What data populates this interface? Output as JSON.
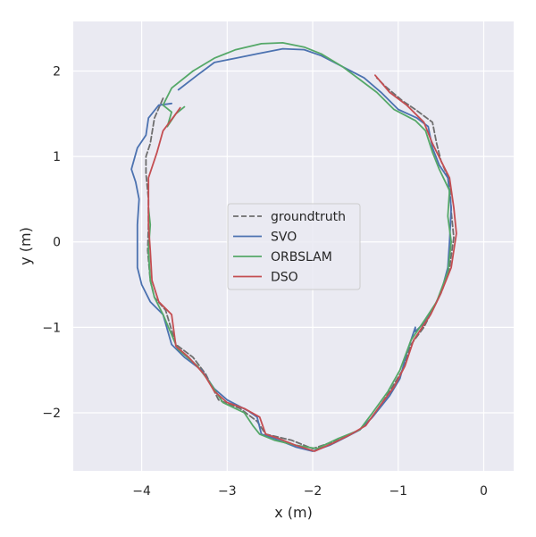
{
  "chart_data": {
    "type": "line",
    "xlabel": "x (m)",
    "ylabel": "y (m)",
    "xlim": [
      -4.8,
      0.35
    ],
    "ylim": [
      -2.68,
      2.58
    ],
    "xticks": [
      -4,
      -3,
      -2,
      -1,
      0
    ],
    "yticks": [
      -2,
      -1,
      0,
      1,
      2
    ],
    "xtick_labels": [
      "−4",
      "−3",
      "−2",
      "−1",
      "0"
    ],
    "ytick_labels": [
      "−2",
      "−1",
      "0",
      "1",
      "2"
    ],
    "grid": true,
    "background": "#eaeaf2",
    "legend_position": "center",
    "series": [
      {
        "name": "groundtruth",
        "color": "#6e6e6e",
        "dash": true,
        "points": [
          [
            -3.75,
            1.68
          ],
          [
            -3.85,
            1.45
          ],
          [
            -3.9,
            1.15
          ],
          [
            -3.95,
            1.0
          ],
          [
            -3.95,
            0.8
          ],
          [
            -3.92,
            0.5
          ],
          [
            -3.92,
            0.2
          ],
          [
            -3.93,
            -0.1
          ],
          [
            -3.9,
            -0.45
          ],
          [
            -3.85,
            -0.65
          ],
          [
            -3.72,
            -0.8
          ],
          [
            -3.6,
            -1.2
          ],
          [
            -3.4,
            -1.35
          ],
          [
            -3.25,
            -1.55
          ],
          [
            -3.1,
            -1.85
          ],
          [
            -2.85,
            -1.95
          ],
          [
            -2.65,
            -2.1
          ],
          [
            -2.55,
            -2.25
          ],
          [
            -2.25,
            -2.32
          ],
          [
            -2.0,
            -2.42
          ],
          [
            -1.7,
            -2.32
          ],
          [
            -1.45,
            -2.2
          ],
          [
            -1.3,
            -2.05
          ],
          [
            -1.1,
            -1.75
          ],
          [
            -0.95,
            -1.5
          ],
          [
            -0.85,
            -1.2
          ],
          [
            -0.7,
            -1.0
          ],
          [
            -0.6,
            -0.8
          ],
          [
            -0.48,
            -0.55
          ],
          [
            -0.4,
            -0.3
          ],
          [
            -0.35,
            0.05
          ],
          [
            -0.38,
            0.35
          ],
          [
            -0.4,
            0.72
          ],
          [
            -0.5,
            0.95
          ],
          [
            -0.55,
            1.15
          ],
          [
            -0.6,
            1.4
          ],
          [
            -0.8,
            1.55
          ],
          [
            -0.95,
            1.65
          ],
          [
            -1.15,
            1.82
          ],
          [
            -1.25,
            1.92
          ]
        ]
      },
      {
        "name": "SVO",
        "color": "#4c72b0",
        "dash": false,
        "points": [
          [
            -3.57,
            1.78
          ],
          [
            -3.35,
            1.95
          ],
          [
            -3.15,
            2.1
          ],
          [
            -2.9,
            2.15
          ],
          [
            -2.65,
            2.2
          ],
          [
            -2.35,
            2.26
          ],
          [
            -2.1,
            2.25
          ],
          [
            -1.9,
            2.18
          ],
          [
            -1.65,
            2.05
          ],
          [
            -1.4,
            1.92
          ],
          [
            -1.2,
            1.75
          ],
          [
            -1.0,
            1.55
          ],
          [
            -0.78,
            1.45
          ],
          [
            -0.65,
            1.35
          ],
          [
            -0.6,
            1.1
          ],
          [
            -0.52,
            0.9
          ],
          [
            -0.42,
            0.75
          ],
          [
            -0.38,
            0.4
          ],
          [
            -0.4,
            0.0
          ],
          [
            -0.42,
            -0.3
          ],
          [
            -0.5,
            -0.6
          ],
          [
            -0.6,
            -0.8
          ],
          [
            -0.7,
            -0.95
          ],
          [
            -0.8,
            -1.05
          ],
          [
            -0.8,
            -1.0
          ],
          [
            -0.9,
            -1.3
          ],
          [
            -0.98,
            -1.6
          ],
          [
            -1.1,
            -1.8
          ],
          [
            -1.3,
            -2.05
          ],
          [
            -1.45,
            -2.2
          ],
          [
            -1.6,
            -2.28
          ],
          [
            -1.8,
            -2.38
          ],
          [
            -2.0,
            -2.45
          ],
          [
            -2.2,
            -2.4
          ],
          [
            -2.45,
            -2.3
          ],
          [
            -2.6,
            -2.25
          ],
          [
            -2.65,
            -2.05
          ],
          [
            -2.75,
            -1.98
          ],
          [
            -3.0,
            -1.85
          ],
          [
            -3.15,
            -1.72
          ],
          [
            -3.3,
            -1.5
          ],
          [
            -3.5,
            -1.35
          ],
          [
            -3.65,
            -1.2
          ],
          [
            -3.75,
            -0.85
          ],
          [
            -3.9,
            -0.7
          ],
          [
            -4.0,
            -0.5
          ],
          [
            -4.05,
            -0.3
          ],
          [
            -4.05,
            -0.0
          ],
          [
            -4.05,
            0.2
          ],
          [
            -4.03,
            0.5
          ],
          [
            -4.07,
            0.7
          ],
          [
            -4.12,
            0.85
          ],
          [
            -4.05,
            1.1
          ],
          [
            -3.95,
            1.25
          ],
          [
            -3.92,
            1.45
          ],
          [
            -3.8,
            1.6
          ],
          [
            -3.65,
            1.62
          ]
        ]
      },
      {
        "name": "ORBSLAM",
        "color": "#55a868",
        "dash": false,
        "points": [
          [
            -3.5,
            1.58
          ],
          [
            -3.6,
            1.5
          ],
          [
            -3.7,
            1.35
          ],
          [
            -3.65,
            1.52
          ],
          [
            -3.75,
            1.6
          ],
          [
            -3.65,
            1.8
          ],
          [
            -3.4,
            2.0
          ],
          [
            -3.15,
            2.15
          ],
          [
            -2.9,
            2.25
          ],
          [
            -2.6,
            2.32
          ],
          [
            -2.35,
            2.33
          ],
          [
            -2.1,
            2.28
          ],
          [
            -1.9,
            2.2
          ],
          [
            -1.65,
            2.05
          ],
          [
            -1.45,
            1.9
          ],
          [
            -1.25,
            1.75
          ],
          [
            -1.05,
            1.55
          ],
          [
            -0.8,
            1.42
          ],
          [
            -0.68,
            1.3
          ],
          [
            -0.6,
            1.05
          ],
          [
            -0.52,
            0.85
          ],
          [
            -0.4,
            0.6
          ],
          [
            -0.42,
            0.3
          ],
          [
            -0.38,
            0.0
          ],
          [
            -0.42,
            -0.35
          ],
          [
            -0.55,
            -0.7
          ],
          [
            -0.68,
            -0.9
          ],
          [
            -0.85,
            -1.15
          ],
          [
            -0.98,
            -1.5
          ],
          [
            -1.12,
            -1.75
          ],
          [
            -1.3,
            -2.0
          ],
          [
            -1.45,
            -2.2
          ],
          [
            -1.7,
            -2.3
          ],
          [
            -1.95,
            -2.42
          ],
          [
            -2.2,
            -2.38
          ],
          [
            -2.45,
            -2.32
          ],
          [
            -2.62,
            -2.25
          ],
          [
            -2.7,
            -2.15
          ],
          [
            -2.8,
            -2.0
          ],
          [
            -3.05,
            -1.88
          ],
          [
            -3.2,
            -1.65
          ],
          [
            -3.35,
            -1.45
          ],
          [
            -3.58,
            -1.25
          ],
          [
            -3.75,
            -0.85
          ],
          [
            -3.85,
            -0.65
          ],
          [
            -3.9,
            -0.45
          ],
          [
            -3.92,
            -0.1
          ],
          [
            -3.9,
            0.2
          ],
          [
            -3.92,
            0.4
          ]
        ]
      },
      {
        "name": "DSO",
        "color": "#c44e52",
        "dash": false,
        "points": [
          [
            -1.27,
            1.95
          ],
          [
            -1.1,
            1.75
          ],
          [
            -0.9,
            1.6
          ],
          [
            -0.7,
            1.4
          ],
          [
            -0.6,
            1.15
          ],
          [
            -0.5,
            0.95
          ],
          [
            -0.4,
            0.75
          ],
          [
            -0.35,
            0.4
          ],
          [
            -0.32,
            0.1
          ],
          [
            -0.38,
            -0.3
          ],
          [
            -0.5,
            -0.6
          ],
          [
            -0.62,
            -0.85
          ],
          [
            -0.72,
            -1.0
          ],
          [
            -0.82,
            -1.15
          ],
          [
            -0.92,
            -1.45
          ],
          [
            -1.05,
            -1.7
          ],
          [
            -1.2,
            -1.9
          ],
          [
            -1.38,
            -2.15
          ],
          [
            -1.55,
            -2.25
          ],
          [
            -1.75,
            -2.35
          ],
          [
            -1.98,
            -2.45
          ],
          [
            -2.2,
            -2.38
          ],
          [
            -2.4,
            -2.3
          ],
          [
            -2.55,
            -2.25
          ],
          [
            -2.62,
            -2.05
          ],
          [
            -2.8,
            -1.95
          ],
          [
            -3.0,
            -1.88
          ],
          [
            -3.15,
            -1.75
          ],
          [
            -3.27,
            -1.55
          ],
          [
            -3.45,
            -1.35
          ],
          [
            -3.6,
            -1.22
          ],
          [
            -3.65,
            -0.85
          ],
          [
            -3.8,
            -0.7
          ],
          [
            -3.88,
            -0.45
          ],
          [
            -3.9,
            -0.1
          ],
          [
            -3.92,
            0.2
          ],
          [
            -3.92,
            0.5
          ],
          [
            -3.92,
            0.75
          ],
          [
            -3.82,
            1.05
          ],
          [
            -3.75,
            1.3
          ],
          [
            -3.6,
            1.5
          ],
          [
            -3.55,
            1.57
          ]
        ]
      }
    ]
  }
}
